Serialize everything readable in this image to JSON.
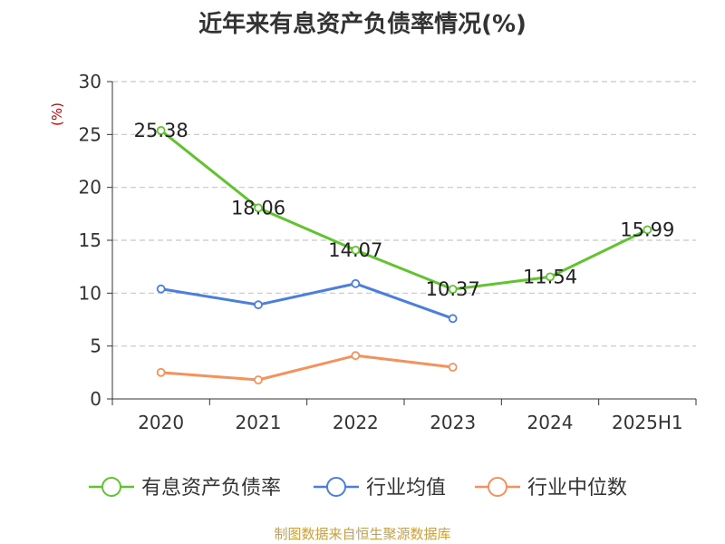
{
  "chart_data": {
    "type": "line",
    "title": "近年来有息资产负债率情况(%)",
    "ylabel": "(%)",
    "xlabel": "",
    "categories": [
      "2020",
      "2021",
      "2022",
      "2023",
      "2024",
      "2025H1"
    ],
    "ylim": [
      0,
      30
    ],
    "yticks": [
      0,
      5,
      10,
      15,
      20,
      25,
      30
    ],
    "grid": true,
    "legend_position": "bottom",
    "series": [
      {
        "name": "有息资产负债率",
        "color": "#5fc42e",
        "values": [
          25.38,
          18.06,
          14.07,
          10.37,
          11.54,
          15.99
        ],
        "labels": [
          "25.38",
          "18.06",
          "14.07",
          "10.37",
          "11.54",
          "15.99"
        ]
      },
      {
        "name": "行业均值",
        "color": "#4a7fdb",
        "values": [
          10.4,
          8.9,
          10.9,
          7.6,
          null,
          null
        ]
      },
      {
        "name": "行业中位数",
        "color": "#f5915a",
        "values": [
          2.5,
          1.8,
          4.1,
          3.0,
          null,
          null
        ]
      }
    ]
  },
  "source_note": "制图数据来自恒生聚源数据库"
}
